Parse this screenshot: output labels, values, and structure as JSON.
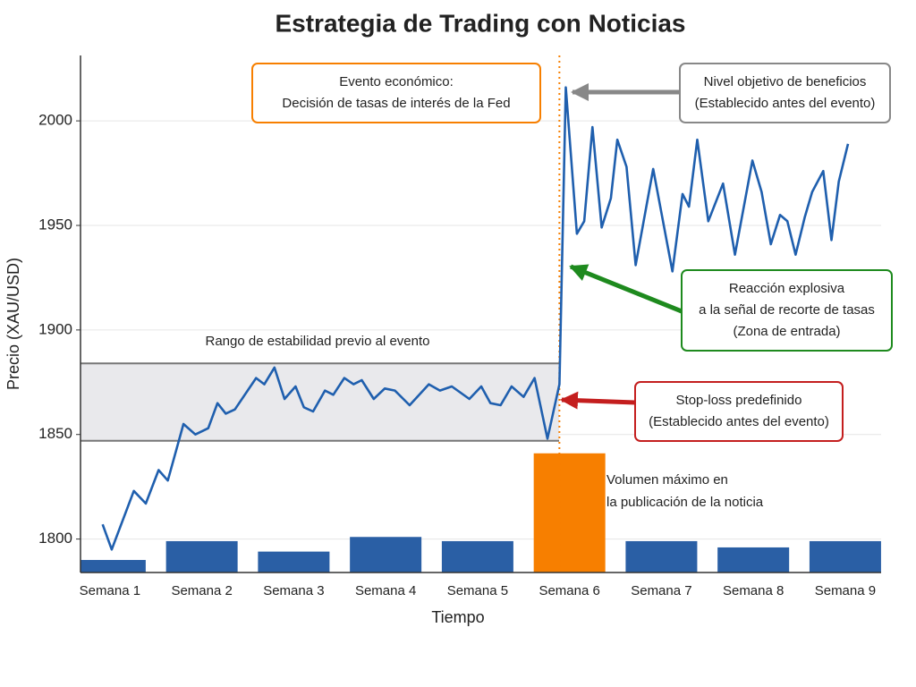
{
  "chart_data": {
    "type": "line",
    "title": "Estrategia de Trading con Noticias",
    "xlabel": "Tiempo",
    "ylabel": "Precio (XAU/USD)",
    "categories": [
      "Semana 1",
      "Semana 2",
      "Semana 3",
      "Semana 4",
      "Semana 5",
      "Semana 6",
      "Semana 7",
      "Semana 8",
      "Semana 9"
    ],
    "bars": {
      "values": [
        1790,
        1799,
        1794,
        1801,
        1799,
        1841,
        1799,
        1796,
        1799
      ],
      "colors": [
        "#2a5fa5",
        "#2a5fa5",
        "#2a5fa5",
        "#2a5fa5",
        "#2a5fa5",
        "#f77f00",
        "#2a5fa5",
        "#2a5fa5",
        "#2a5fa5"
      ]
    },
    "x": [
      0.92,
      1.02,
      1.26,
      1.39,
      1.53,
      1.63,
      1.8,
      1.93,
      2.07,
      2.17,
      2.26,
      2.36,
      2.59,
      2.68,
      2.79,
      2.9,
      3.02,
      3.11,
      3.21,
      3.34,
      3.43,
      3.55,
      3.65,
      3.74,
      3.87,
      3.99,
      4.1,
      4.26,
      4.47,
      4.59,
      4.72,
      4.91,
      5.04,
      5.14,
      5.25,
      5.37,
      5.5,
      5.62,
      5.76,
      5.89,
      5.96,
      6.08,
      6.16,
      6.25,
      6.35,
      6.45,
      6.52,
      6.62,
      6.72,
      6.91,
      7.12,
      7.23,
      7.3,
      7.39,
      7.51,
      7.67,
      7.8,
      7.99,
      8.09,
      8.19,
      8.29,
      8.37,
      8.46,
      8.56,
      8.64,
      8.76,
      8.85,
      8.93,
      9.03
    ],
    "values": [
      1807,
      1795,
      1823,
      1817,
      1833,
      1828,
      1855,
      1850,
      1853,
      1865,
      1860,
      1862,
      1877,
      1874,
      1882,
      1867,
      1873,
      1863,
      1861,
      1871,
      1869,
      1877,
      1874,
      1876,
      1867,
      1872,
      1871,
      1864,
      1874,
      1871,
      1873,
      1867,
      1873,
      1865,
      1864,
      1873,
      1868,
      1877,
      1848,
      1874,
      2016,
      1946,
      1952,
      1997,
      1949,
      1963,
      1991,
      1978,
      1931,
      1977,
      1928,
      1965,
      1959,
      1991,
      1952,
      1970,
      1936,
      1981,
      1966,
      1941,
      1955,
      1952,
      1936,
      1954,
      1966,
      1976,
      1943,
      1971,
      1989
    ],
    "color": "#1f5fae",
    "xlim": [
      0.68,
      9.39
    ],
    "ylim": [
      1784,
      2030
    ],
    "yticks": [
      1800,
      1850,
      1900,
      1950,
      2000
    ],
    "grid": true,
    "event_x": 5.89,
    "event_color": "#f77f00",
    "band": {
      "range": [
        1847,
        1884
      ],
      "label": "Rango de estabilidad previo al evento"
    },
    "volume_note": [
      "Volumen máximo en",
      "la publicación de la noticia"
    ],
    "annotations": [
      {
        "lines": [
          "Evento económico:",
          "Decisión de tasas de interés de la Fed"
        ],
        "color": "#f77f00"
      },
      {
        "lines": [
          "Nivel objetivo de beneficios",
          "(Establecido antes del evento)"
        ],
        "color": "#888888"
      },
      {
        "lines": [
          "Reacción explosiva",
          "a la señal de recorte de tasas",
          "(Zona de entrada)"
        ],
        "color": "#1e8a1e"
      },
      {
        "lines": [
          "Stop-loss predefinido",
          "(Establecido antes del evento)"
        ],
        "color": "#c41e1e"
      }
    ]
  }
}
